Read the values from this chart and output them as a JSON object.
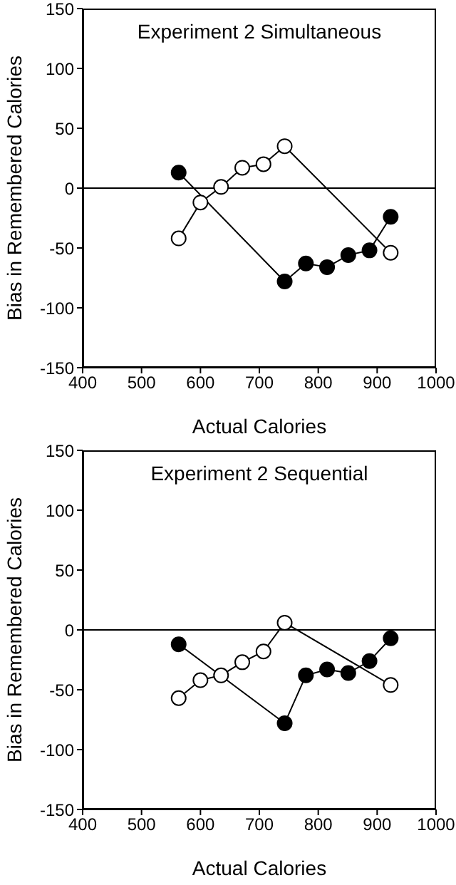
{
  "chart_data": [
    {
      "type": "line",
      "title": "Experiment 2 Simultaneous",
      "xlabel": "Actual Calories",
      "ylabel": "Bias in Remembered Calories",
      "xlim": [
        400,
        1000
      ],
      "xticks": [
        400,
        500,
        600,
        700,
        800,
        900,
        1000
      ],
      "ylim": [
        -150,
        150
      ],
      "yticks": [
        -150,
        -100,
        -50,
        0,
        50,
        100,
        150
      ],
      "marker": "circle",
      "grid": false,
      "legend": false,
      "ref_lines": [
        {
          "axis": "y",
          "value": 0,
          "color": "#000000"
        }
      ],
      "series": [
        {
          "color": "#000000",
          "x": [
            563,
            743,
            779,
            815,
            851,
            887,
            923
          ],
          "values": [
            13,
            -78,
            -63,
            -66,
            -56,
            -52,
            -24
          ]
        },
        {
          "color": "#ffffff",
          "x": [
            563,
            600,
            635,
            671,
            707,
            743,
            923
          ],
          "values": [
            -42,
            -12,
            1,
            17,
            20,
            35,
            -54
          ]
        }
      ]
    },
    {
      "type": "line",
      "title": "Experiment 2 Sequential",
      "xlabel": "Actual Calories",
      "ylabel": "Bias in Remembered Calories",
      "xlim": [
        400,
        1000
      ],
      "xticks": [
        400,
        500,
        600,
        700,
        800,
        900,
        1000
      ],
      "ylim": [
        -150,
        150
      ],
      "yticks": [
        -150,
        -100,
        -50,
        0,
        50,
        100,
        150
      ],
      "marker": "circle",
      "grid": false,
      "legend": false,
      "ref_lines": [
        {
          "axis": "y",
          "value": 0,
          "color": "#000000"
        }
      ],
      "series": [
        {
          "color": "#000000",
          "x": [
            563,
            743,
            779,
            815,
            851,
            887,
            923
          ],
          "values": [
            -12,
            -78,
            -38,
            -33,
            -36,
            -26,
            -7
          ]
        },
        {
          "color": "#ffffff",
          "x": [
            563,
            600,
            635,
            671,
            707,
            743,
            923
          ],
          "values": [
            -57,
            -42,
            -38,
            -27,
            -18,
            6,
            -46
          ]
        }
      ]
    }
  ]
}
